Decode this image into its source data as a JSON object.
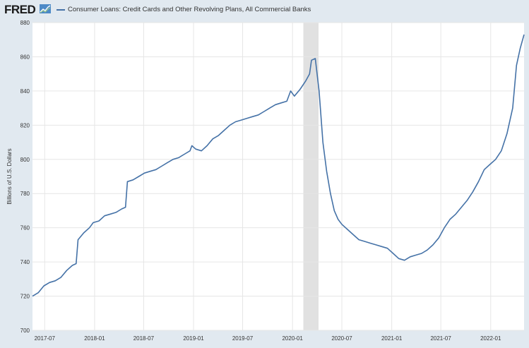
{
  "header": {
    "logo_text": "FRED",
    "legend_label": "Consumer Loans: Credit Cards and Other Revolving Plans, All Commercial Banks"
  },
  "chart_data": {
    "type": "line",
    "title": "",
    "xlabel": "",
    "ylabel": "Billions of U.S. Dollars",
    "ylim": [
      700,
      880
    ],
    "xlim": [
      "2017-05-17",
      "2022-05-04"
    ],
    "yticks": [
      700,
      720,
      740,
      760,
      780,
      800,
      820,
      840,
      860,
      880
    ],
    "xticks": [
      "2017-07",
      "2018-01",
      "2018-07",
      "2019-01",
      "2019-07",
      "2020-01",
      "2020-07",
      "2021-01",
      "2021-07",
      "2022-01"
    ],
    "grid": true,
    "legend": "top-left",
    "recession": {
      "start": "2020-02-10",
      "end": "2020-04-06",
      "color": "#e1e1e1"
    },
    "series": [
      {
        "name": "Consumer Loans: Credit Cards and Other Revolving Plans, All Commercial Banks",
        "color": "#4572a7",
        "points": [
          [
            "2017-05-17",
            720
          ],
          [
            "2017-06-07",
            722
          ],
          [
            "2017-06-28",
            726
          ],
          [
            "2017-07-19",
            728
          ],
          [
            "2017-08-09",
            729
          ],
          [
            "2017-08-30",
            731
          ],
          [
            "2017-09-20",
            735
          ],
          [
            "2017-10-11",
            738
          ],
          [
            "2017-10-25",
            739
          ],
          [
            "2017-11-01",
            753
          ],
          [
            "2017-11-22",
            757
          ],
          [
            "2017-12-13",
            760
          ],
          [
            "2017-12-27",
            763
          ],
          [
            "2018-01-17",
            764
          ],
          [
            "2018-02-07",
            767
          ],
          [
            "2018-02-28",
            768
          ],
          [
            "2018-03-21",
            769
          ],
          [
            "2018-04-11",
            771
          ],
          [
            "2018-04-25",
            772
          ],
          [
            "2018-05-02",
            787
          ],
          [
            "2018-05-23",
            788
          ],
          [
            "2018-06-13",
            790
          ],
          [
            "2018-07-04",
            792
          ],
          [
            "2018-07-25",
            793
          ],
          [
            "2018-08-15",
            794
          ],
          [
            "2018-09-05",
            796
          ],
          [
            "2018-09-26",
            798
          ],
          [
            "2018-10-17",
            800
          ],
          [
            "2018-11-07",
            801
          ],
          [
            "2018-11-28",
            803
          ],
          [
            "2018-12-19",
            805
          ],
          [
            "2018-12-26",
            808
          ],
          [
            "2019-01-09",
            806
          ],
          [
            "2019-01-30",
            805
          ],
          [
            "2019-02-20",
            808
          ],
          [
            "2019-03-13",
            812
          ],
          [
            "2019-04-03",
            814
          ],
          [
            "2019-04-24",
            817
          ],
          [
            "2019-05-15",
            820
          ],
          [
            "2019-06-05",
            822
          ],
          [
            "2019-06-26",
            823
          ],
          [
            "2019-07-17",
            824
          ],
          [
            "2019-08-07",
            825
          ],
          [
            "2019-08-28",
            826
          ],
          [
            "2019-09-18",
            828
          ],
          [
            "2019-10-09",
            830
          ],
          [
            "2019-10-30",
            832
          ],
          [
            "2019-11-20",
            833
          ],
          [
            "2019-12-11",
            834
          ],
          [
            "2019-12-25",
            840
          ],
          [
            "2020-01-08",
            837
          ],
          [
            "2020-01-29",
            841
          ],
          [
            "2020-02-19",
            846
          ],
          [
            "2020-03-04",
            850
          ],
          [
            "2020-03-11",
            858
          ],
          [
            "2020-03-25",
            859
          ],
          [
            "2020-04-08",
            840
          ],
          [
            "2020-04-22",
            810
          ],
          [
            "2020-05-06",
            793
          ],
          [
            "2020-05-20",
            780
          ],
          [
            "2020-06-03",
            770
          ],
          [
            "2020-06-17",
            765
          ],
          [
            "2020-07-01",
            762
          ],
          [
            "2020-07-22",
            759
          ],
          [
            "2020-08-12",
            756
          ],
          [
            "2020-09-02",
            753
          ],
          [
            "2020-09-23",
            752
          ],
          [
            "2020-10-14",
            751
          ],
          [
            "2020-11-04",
            750
          ],
          [
            "2020-11-25",
            749
          ],
          [
            "2020-12-16",
            748
          ],
          [
            "2021-01-06",
            745
          ],
          [
            "2021-01-27",
            742
          ],
          [
            "2021-02-17",
            741
          ],
          [
            "2021-03-10",
            743
          ],
          [
            "2021-03-31",
            744
          ],
          [
            "2021-04-21",
            745
          ],
          [
            "2021-05-12",
            747
          ],
          [
            "2021-06-02",
            750
          ],
          [
            "2021-06-23",
            754
          ],
          [
            "2021-07-14",
            760
          ],
          [
            "2021-08-04",
            765
          ],
          [
            "2021-08-25",
            768
          ],
          [
            "2021-09-15",
            772
          ],
          [
            "2021-10-06",
            776
          ],
          [
            "2021-10-27",
            781
          ],
          [
            "2021-11-17",
            787
          ],
          [
            "2021-12-08",
            794
          ],
          [
            "2021-12-29",
            797
          ],
          [
            "2022-01-19",
            800
          ],
          [
            "2022-02-09",
            805
          ],
          [
            "2022-03-02",
            815
          ],
          [
            "2022-03-23",
            830
          ],
          [
            "2022-04-06",
            855
          ],
          [
            "2022-04-20",
            865
          ],
          [
            "2022-05-04",
            873
          ]
        ]
      }
    ]
  }
}
